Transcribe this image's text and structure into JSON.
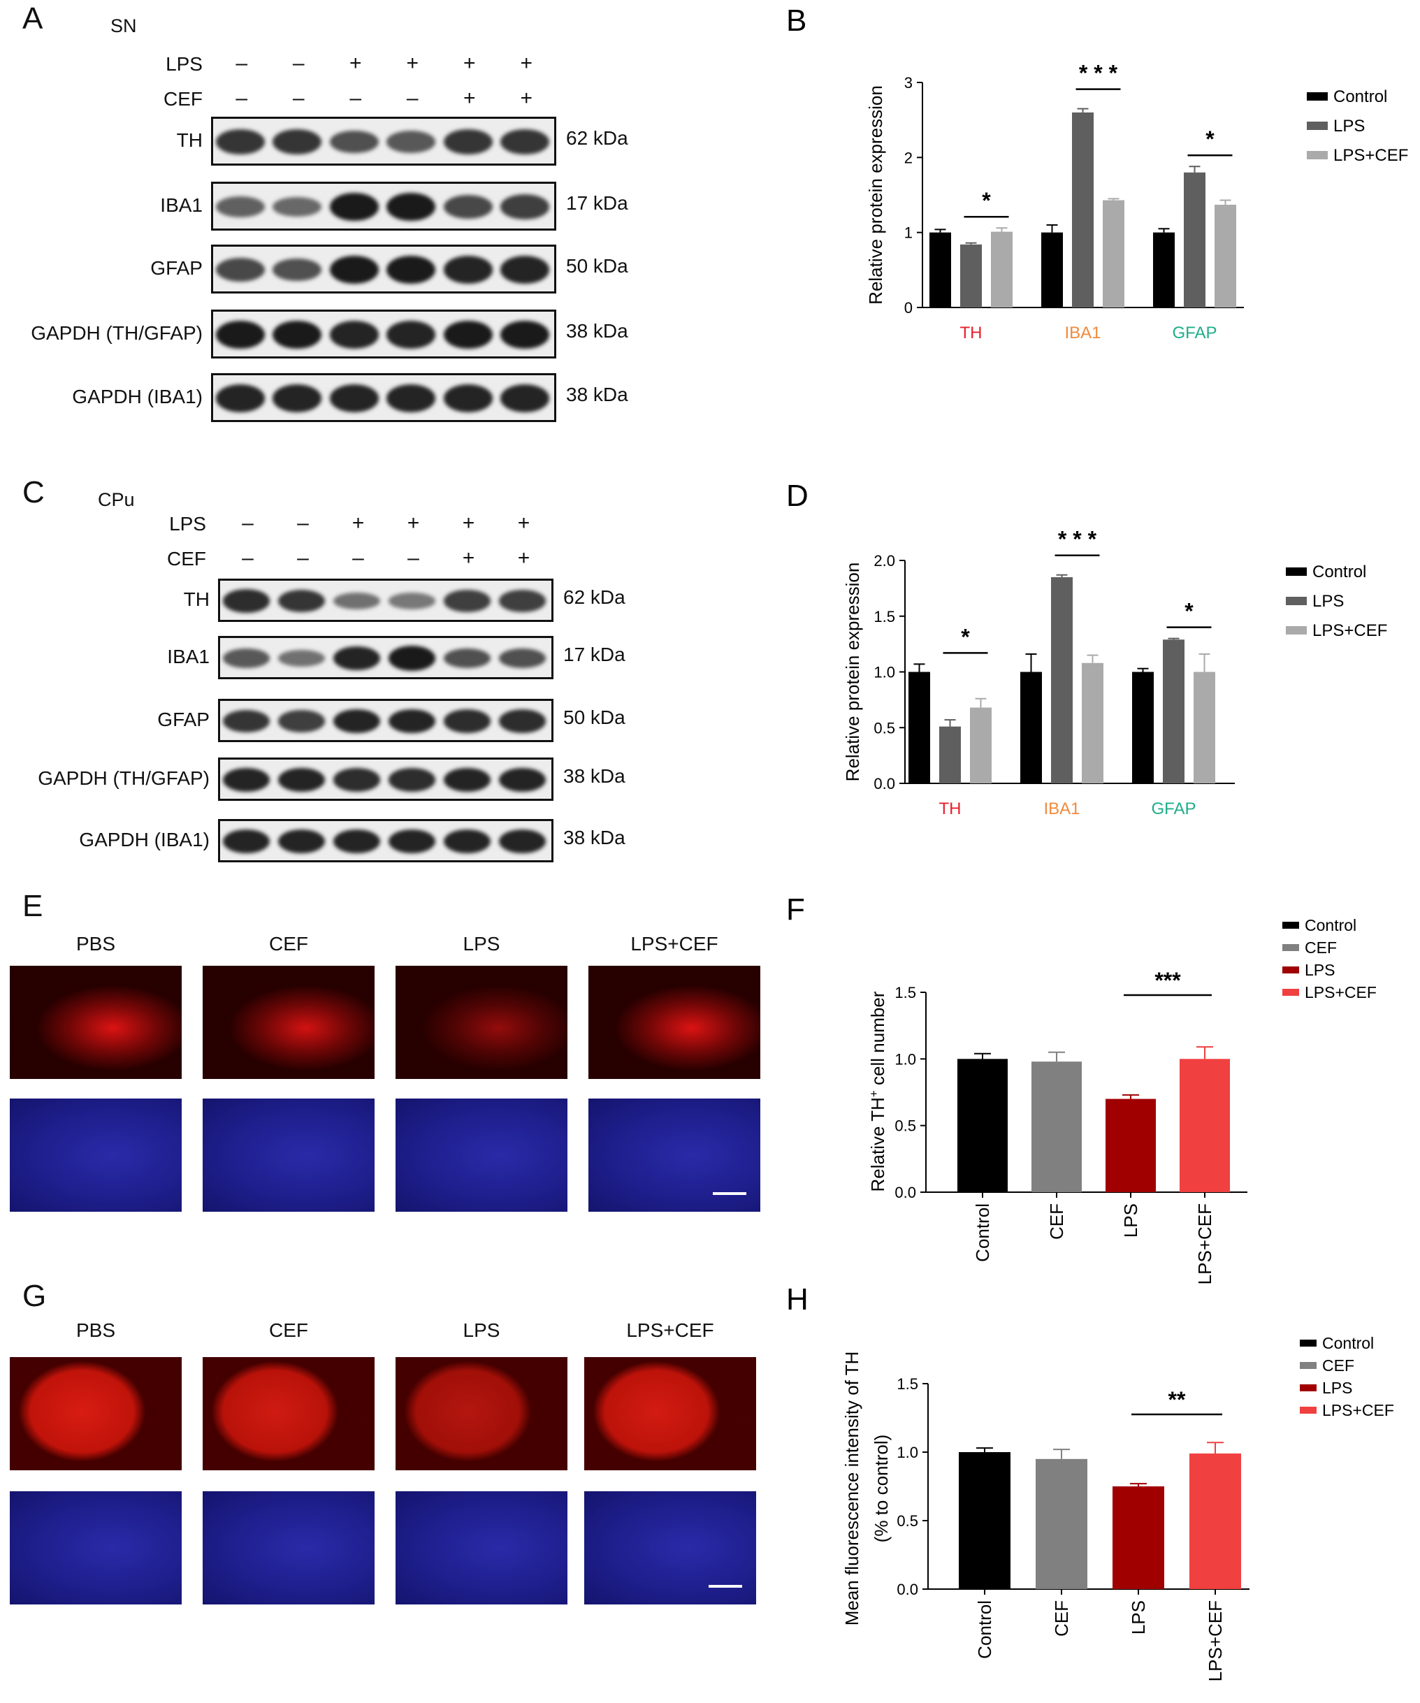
{
  "panels": {
    "A": {
      "letter": "A",
      "region": "SN",
      "treatments": [
        {
          "name": "LPS",
          "signs": [
            "–",
            "–",
            "+",
            "+",
            "+",
            "+"
          ]
        },
        {
          "name": "CEF",
          "signs": [
            "–",
            "–",
            "–",
            "–",
            "+",
            "+"
          ]
        }
      ],
      "rows": [
        {
          "label": "TH",
          "kda": "62 kDa",
          "intensity": [
            0.8,
            0.8,
            0.65,
            0.6,
            0.8,
            0.8
          ]
        },
        {
          "label": "IBA1",
          "kda": "17 kDa",
          "intensity": [
            0.55,
            0.5,
            0.95,
            0.95,
            0.7,
            0.75
          ]
        },
        {
          "label": "GFAP",
          "kda": "50 kDa",
          "intensity": [
            0.7,
            0.65,
            0.95,
            0.95,
            0.9,
            0.9
          ]
        },
        {
          "label": "GAPDH (TH/GFAP)",
          "kda": "38 kDa",
          "intensity": [
            0.95,
            0.95,
            0.9,
            0.9,
            0.95,
            0.95
          ]
        },
        {
          "label": "GAPDH (IBA1)",
          "kda": "38 kDa",
          "intensity": [
            0.9,
            0.9,
            0.9,
            0.9,
            0.9,
            0.9
          ]
        }
      ]
    },
    "C": {
      "letter": "C",
      "region": "CPu",
      "treatments": [
        {
          "name": "LPS",
          "signs": [
            "–",
            "–",
            "+",
            "+",
            "+",
            "+"
          ]
        },
        {
          "name": "CEF",
          "signs": [
            "–",
            "–",
            "–",
            "–",
            "+",
            "+"
          ]
        }
      ],
      "rows": [
        {
          "label": "TH",
          "kda": "62 kDa",
          "intensity": [
            0.85,
            0.8,
            0.45,
            0.4,
            0.75,
            0.75
          ]
        },
        {
          "label": "IBA1",
          "kda": "17 kDa",
          "intensity": [
            0.6,
            0.45,
            0.9,
            0.95,
            0.65,
            0.65
          ]
        },
        {
          "label": "GFAP",
          "kda": "50 kDa",
          "intensity": [
            0.8,
            0.75,
            0.9,
            0.9,
            0.85,
            0.85
          ]
        },
        {
          "label": "GAPDH (TH/GFAP)",
          "kda": "38 kDa",
          "intensity": [
            0.9,
            0.9,
            0.85,
            0.85,
            0.9,
            0.9
          ]
        },
        {
          "label": "GAPDH (IBA1)",
          "kda": "38 kDa",
          "intensity": [
            0.9,
            0.9,
            0.9,
            0.9,
            0.9,
            0.9
          ]
        }
      ]
    },
    "E": {
      "letter": "E",
      "groups": [
        "PBS",
        "CEF",
        "LPS",
        "LPS+CEF"
      ]
    },
    "G": {
      "letter": "G",
      "groups": [
        "PBS",
        "CEF",
        "LPS",
        "LPS+CEF"
      ]
    }
  },
  "chart_data": [
    {
      "panel": "B",
      "type": "bar",
      "ylabel": "Relative protein expression",
      "ylim": [
        0,
        3
      ],
      "yticks": [
        "0",
        "1",
        "2",
        "3"
      ],
      "categories": [
        "TH",
        "IBA1",
        "GFAP"
      ],
      "category_colors": [
        "#e8202a",
        "#f08a3c",
        "#1fae8a"
      ],
      "series": [
        {
          "name": "Control",
          "color": "#000000",
          "values": [
            1.0,
            1.0,
            1.0
          ],
          "errors": [
            0.04,
            0.1,
            0.05
          ]
        },
        {
          "name": "LPS",
          "color": "#5f5f5f",
          "values": [
            0.84,
            2.6,
            1.8
          ],
          "errors": [
            0.02,
            0.05,
            0.08
          ]
        },
        {
          "name": "LPS+CEF",
          "color": "#aaaaaa",
          "values": [
            1.01,
            1.43,
            1.37
          ],
          "errors": [
            0.05,
            0.02,
            0.06
          ]
        }
      ],
      "significance": [
        "*",
        "* * *",
        "*"
      ],
      "legend": "top-right"
    },
    {
      "panel": "D",
      "type": "bar",
      "ylabel": "Relative protein expression",
      "ylim": [
        0,
        2.0
      ],
      "yticks": [
        "0.0",
        "0.5",
        "1.0",
        "1.5",
        "2.0"
      ],
      "categories": [
        "TH",
        "IBA1",
        "GFAP"
      ],
      "category_colors": [
        "#e8202a",
        "#f08a3c",
        "#1fae8a"
      ],
      "series": [
        {
          "name": "Control",
          "color": "#000000",
          "values": [
            1.0,
            1.0,
            1.0
          ],
          "errors": [
            0.07,
            0.16,
            0.03
          ]
        },
        {
          "name": "LPS",
          "color": "#5f5f5f",
          "values": [
            0.51,
            1.85,
            1.29
          ],
          "errors": [
            0.06,
            0.02,
            0.01
          ]
        },
        {
          "name": "LPS+CEF",
          "color": "#aaaaaa",
          "values": [
            0.68,
            1.08,
            1.0
          ],
          "errors": [
            0.08,
            0.07,
            0.16
          ]
        }
      ],
      "significance": [
        "*",
        "* * *",
        "*"
      ],
      "legend": "top-right"
    },
    {
      "panel": "F",
      "type": "bar",
      "ylabel_parts": [
        "Relative TH",
        "+",
        " cell number"
      ],
      "ylim": [
        0,
        1.5
      ],
      "yticks": [
        "0.0",
        "0.5",
        "1.0",
        "1.5"
      ],
      "categories": [
        "Control",
        "CEF",
        "LPS",
        "LPS+CEF"
      ],
      "values": [
        1.0,
        0.98,
        0.7,
        1.0
      ],
      "errors": [
        0.04,
        0.07,
        0.03,
        0.09
      ],
      "colors": [
        "#000000",
        "#808080",
        "#a00000",
        "#f04040"
      ],
      "significance": {
        "between": [
          "LPS",
          "LPS+CEF"
        ],
        "label": "***"
      },
      "legend": "top-right"
    },
    {
      "panel": "H",
      "type": "bar",
      "ylabel_lines": [
        "Mean fluorescence intensity of TH",
        "(% to control)"
      ],
      "ylim": [
        0,
        1.5
      ],
      "yticks": [
        "0.0",
        "0.5",
        "1.0",
        "1.5"
      ],
      "categories": [
        "Control",
        "CEF",
        "LPS",
        "LPS+CEF"
      ],
      "values": [
        1.0,
        0.95,
        0.75,
        0.99
      ],
      "errors": [
        0.03,
        0.07,
        0.02,
        0.08
      ],
      "colors": [
        "#000000",
        "#808080",
        "#a00000",
        "#f04040"
      ],
      "significance": {
        "between": [
          "LPS",
          "LPS+CEF"
        ],
        "label": "**"
      },
      "legend": "top-right"
    }
  ]
}
